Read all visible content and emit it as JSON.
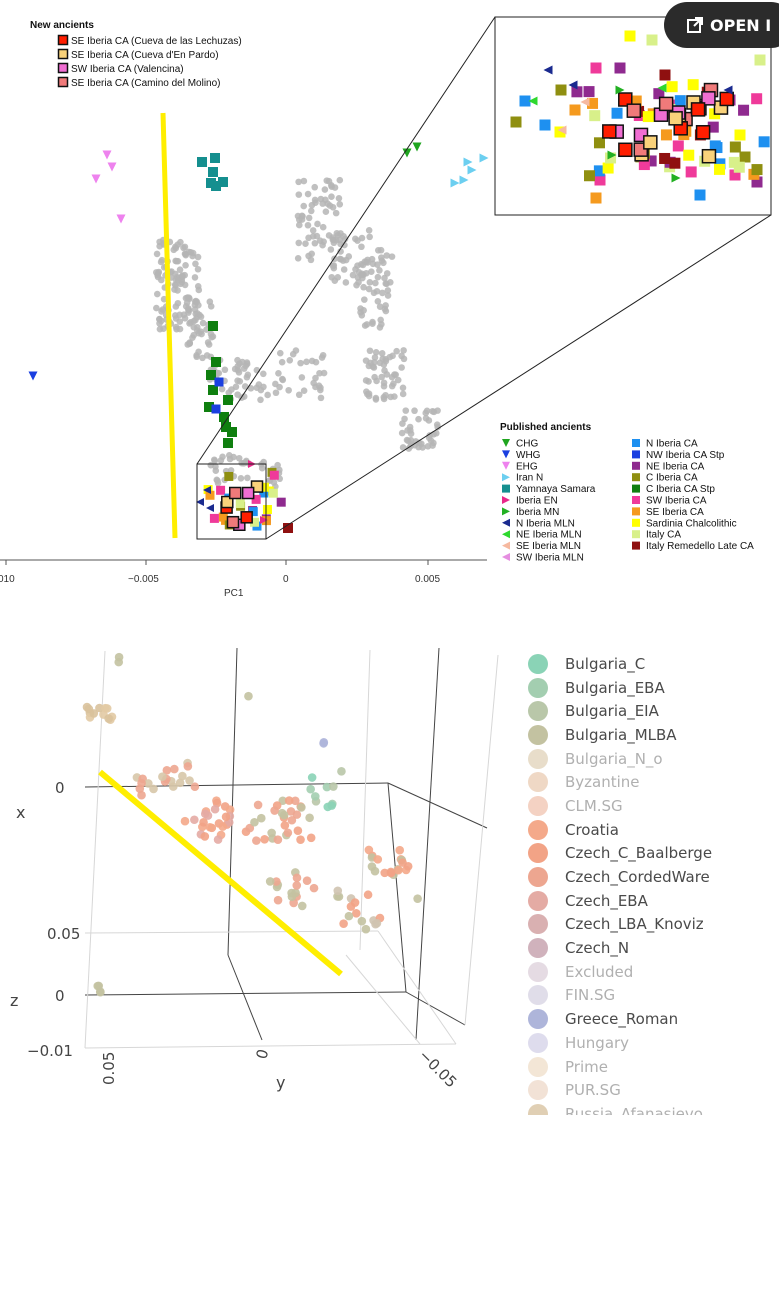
{
  "button": {
    "label": "OPEN I",
    "icon": "open-external-icon"
  },
  "chart_data": [
    {
      "type": "scatter",
      "xlabel": "PC1",
      "xticks": [
        "010",
        "−0.005",
        "0",
        "0.005"
      ],
      "new_ancients_title": "New ancients",
      "new_ancients": [
        {
          "name": "SE Iberia CA (Cueva de las Lechuzas)",
          "color": "#ff1e00"
        },
        {
          "name": "SE Iberia CA (Cueva d'En Pardo)",
          "color": "#f9d27a"
        },
        {
          "name": "SW Iberia CA (Valencina)",
          "color": "#f06ed2"
        },
        {
          "name": "SE Iberia CA (Camino del Molino)",
          "color": "#f07a7a"
        }
      ],
      "published_title": "Published ancients",
      "published_col1": [
        {
          "name": "CHG",
          "color": "#1fa51f",
          "shape": "tri-down"
        },
        {
          "name": "WHG",
          "color": "#1a3fe0",
          "shape": "tri-down"
        },
        {
          "name": "EHG",
          "color": "#ee82ee",
          "shape": "tri-down"
        },
        {
          "name": "Iran N",
          "color": "#6ccff0",
          "shape": "tri-right"
        },
        {
          "name": "Yamnaya Samara",
          "color": "#158f8f",
          "shape": "square"
        },
        {
          "name": "Iberia EN",
          "color": "#e8298a",
          "shape": "tri-right"
        },
        {
          "name": "Iberia MN",
          "color": "#22b022",
          "shape": "tri-right"
        },
        {
          "name": "N Iberia MLN",
          "color": "#1a2a8f",
          "shape": "tri-left"
        },
        {
          "name": "NE Iberia MLN",
          "color": "#2ed82e",
          "shape": "tri-left"
        },
        {
          "name": "SE Iberia MLN",
          "color": "#f6b9a0",
          "shape": "tri-left"
        },
        {
          "name": "SW Iberia MLN",
          "color": "#e58ee0",
          "shape": "tri-left"
        }
      ],
      "published_col2": [
        {
          "name": "N Iberia CA",
          "color": "#1e90f0",
          "shape": "square"
        },
        {
          "name": "NW Iberia CA Stp",
          "color": "#1a3fe0",
          "shape": "square"
        },
        {
          "name": "NE Iberia CA",
          "color": "#8f2a8f",
          "shape": "square"
        },
        {
          "name": "C Iberia CA",
          "color": "#8f8f10",
          "shape": "square"
        },
        {
          "name": "C Iberia CA Stp",
          "color": "#0f7f0f",
          "shape": "square"
        },
        {
          "name": "SW Iberia CA",
          "color": "#ef3a9a",
          "shape": "square"
        },
        {
          "name": "SE Iberia CA",
          "color": "#f59a1e",
          "shape": "square"
        },
        {
          "name": "Sardinia Chalcolithic",
          "color": "#ffff00",
          "shape": "square"
        },
        {
          "name": "Italy CA",
          "color": "#d8f08a",
          "shape": "square"
        },
        {
          "name": "Italy Remedello Late CA",
          "color": "#8f1010",
          "shape": "square"
        }
      ]
    },
    {
      "type": "scatter",
      "x_axis_label": "x",
      "y_axis_label": "y",
      "z_axis_label": "z",
      "x_ticks": [
        "0",
        "0.05"
      ],
      "z_ticks": [
        "0",
        "−0.01"
      ],
      "y_ticks": [
        "0.05",
        "0",
        "−0.05"
      ],
      "legend": [
        {
          "name": "Bulgaria_C",
          "color": "#8ad3b6",
          "active": true
        },
        {
          "name": "Bulgaria_EBA",
          "color": "#a3ceb0",
          "active": true
        },
        {
          "name": "Bulgaria_EIA",
          "color": "#b9c7a9",
          "active": true
        },
        {
          "name": "Bulgaria_MLBA",
          "color": "#c3c2a1",
          "active": true
        },
        {
          "name": "Bulgaria_N_o",
          "color": "#e8ddca",
          "active": false
        },
        {
          "name": "Byzantine",
          "color": "#efd8c5",
          "active": false
        },
        {
          "name": "CLM.SG",
          "color": "#f4d2c3",
          "active": false
        },
        {
          "name": "Croatia",
          "color": "#f4a98a",
          "active": true
        },
        {
          "name": "Czech_C_Baalberge",
          "color": "#f2a386",
          "active": true
        },
        {
          "name": "Czech_CordedWare",
          "color": "#eda690",
          "active": true
        },
        {
          "name": "Czech_EBA",
          "color": "#e4aba4",
          "active": true
        },
        {
          "name": "Czech_LBA_Knoviz",
          "color": "#d9b0b1",
          "active": true
        },
        {
          "name": "Czech_N",
          "color": "#d0b2bc",
          "active": true
        },
        {
          "name": "Excluded",
          "color": "#e5dbe3",
          "active": false
        },
        {
          "name": "FIN.SG",
          "color": "#e0dde9",
          "active": false
        },
        {
          "name": "Greece_Roman",
          "color": "#aeb5da",
          "active": true
        },
        {
          "name": "Hungary",
          "color": "#dedced",
          "active": false
        },
        {
          "name": "Prime",
          "color": "#f3e6d6",
          "active": false
        },
        {
          "name": "PUR.SG",
          "color": "#f2e2d6",
          "active": false
        },
        {
          "name": "Russia_Afanasievo",
          "color": "#e0cfb4",
          "active": false
        }
      ]
    }
  ]
}
